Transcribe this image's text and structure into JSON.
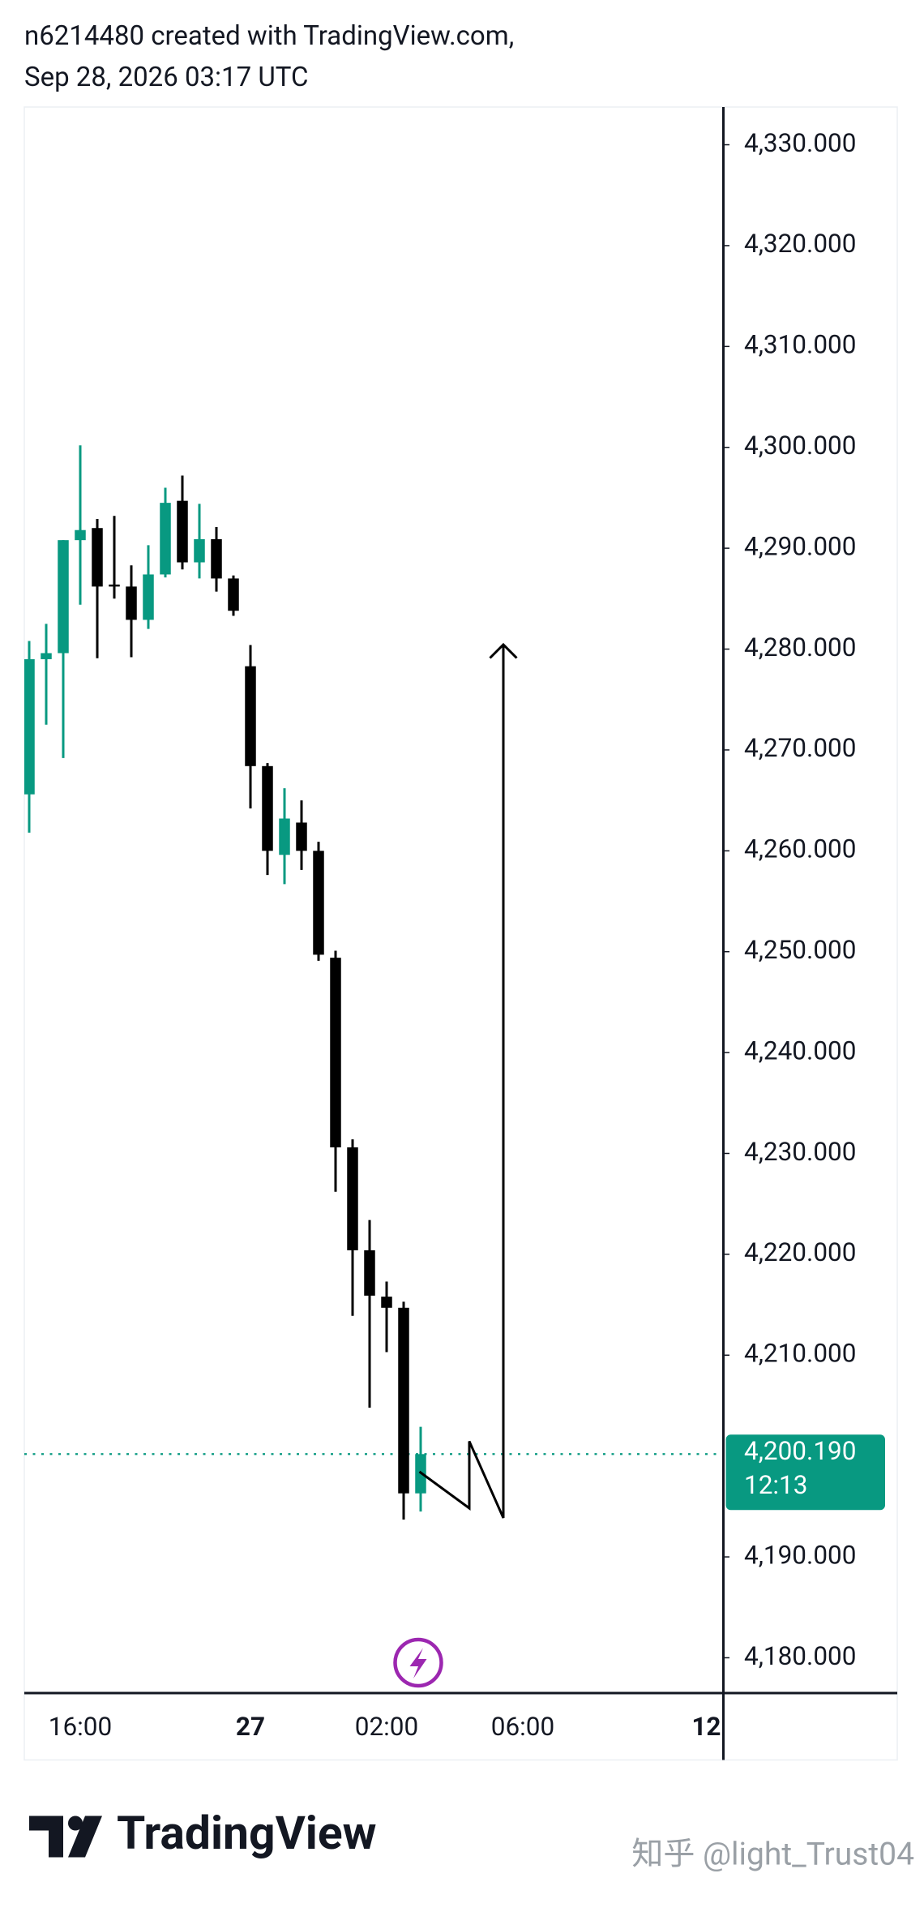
{
  "header": {
    "author_line": "n6214480 created with TradingView.com,",
    "date_line": "Sep 28, 2026 03:17 UTC"
  },
  "footer": {
    "logo": "TradingView",
    "watermark": "知乎 @light_Trust04"
  },
  "chart_data": {
    "type": "candlestick",
    "categories": [
      null,
      null,
      null,
      "16:00",
      null,
      null,
      null,
      null,
      null,
      null,
      null,
      null,
      null,
      "27",
      null,
      null,
      null,
      null,
      null,
      null,
      null,
      "02:00",
      null,
      null,
      null,
      null,
      null,
      null,
      null,
      "06:00",
      null,
      null,
      null,
      null,
      null,
      null,
      null,
      null,
      null,
      null,
      null,
      "12"
    ],
    "open": [
      4265.6,
      4279.0,
      4279.6,
      4290.8,
      4292.0,
      4286.4,
      4286.2,
      4282.9,
      4287.4,
      4294.7,
      4288.6,
      4290.9,
      4287.0,
      4278.3,
      4268.4,
      4259.6,
      4262.8,
      4260.0,
      4249.4,
      4230.6,
      4220.4,
      4215.8,
      4214.7,
      4196.3,
      null,
      null,
      null,
      null,
      null,
      null,
      null,
      null,
      null,
      null,
      null,
      null,
      null,
      null,
      null,
      null,
      null,
      null
    ],
    "high": [
      4280.8,
      4282.5,
      4290.8,
      4300.2,
      4292.9,
      4293.2,
      4288.3,
      4290.3,
      4296.0,
      4297.2,
      4294.4,
      4292.1,
      4287.3,
      4280.4,
      4268.7,
      4266.2,
      4265.0,
      4260.9,
      4250.1,
      4231.4,
      4223.4,
      4217.3,
      4215.3,
      4202.9,
      null,
      null,
      null,
      null,
      null,
      null,
      null,
      null,
      null,
      null,
      null,
      null,
      null,
      null,
      null,
      null,
      null,
      null
    ],
    "low": [
      4261.8,
      4272.5,
      4269.2,
      4284.4,
      4279.1,
      4285.0,
      4279.2,
      4282.0,
      4287.1,
      4287.9,
      4287.0,
      4285.7,
      4283.3,
      4264.2,
      4257.6,
      4256.7,
      4258.1,
      4249.1,
      4226.2,
      4213.9,
      4204.8,
      4210.3,
      4193.7,
      4194.5,
      null,
      null,
      null,
      null,
      null,
      null,
      null,
      null,
      null,
      null,
      null,
      null,
      null,
      null,
      null,
      null,
      null,
      null
    ],
    "close": [
      4279.0,
      4279.6,
      4290.8,
      4291.8,
      4286.2,
      4286.2,
      4282.9,
      4287.4,
      4294.5,
      4288.6,
      4290.9,
      4287.0,
      4283.8,
      4268.4,
      4260.0,
      4263.2,
      4260.0,
      4249.7,
      4230.6,
      4220.4,
      4215.9,
      4214.7,
      4196.3,
      4200.19,
      null,
      null,
      null,
      null,
      null,
      null,
      null,
      null,
      null,
      null,
      null,
      null,
      null,
      null,
      null,
      null,
      null,
      null
    ],
    "up_color": "#089981",
    "down_color": "#000000",
    "ylim": [
      4176.5,
      4333.74
    ],
    "yticks": [
      {
        "value": 4180,
        "label": "4,180.000"
      },
      {
        "value": 4190,
        "label": "4,190.000"
      },
      {
        "value": 4210,
        "label": "4,210.000"
      },
      {
        "value": 4220,
        "label": "4,220.000"
      },
      {
        "value": 4230,
        "label": "4,230.000"
      },
      {
        "value": 4240,
        "label": "4,240.000"
      },
      {
        "value": 4250,
        "label": "4,250.000"
      },
      {
        "value": 4260,
        "label": "4,260.000"
      },
      {
        "value": 4270,
        "label": "4,270.000"
      },
      {
        "value": 4280,
        "label": "4,280.000"
      },
      {
        "value": 4290,
        "label": "4,290.000"
      },
      {
        "value": 4300,
        "label": "4,300.000"
      },
      {
        "value": 4310,
        "label": "4,310.000"
      },
      {
        "value": 4320,
        "label": "4,320.000"
      },
      {
        "value": 4330,
        "label": "4,330.000"
      }
    ],
    "last_price": {
      "value": 4200.19,
      "label": "4,200.190"
    },
    "countdown": "12:13"
  }
}
